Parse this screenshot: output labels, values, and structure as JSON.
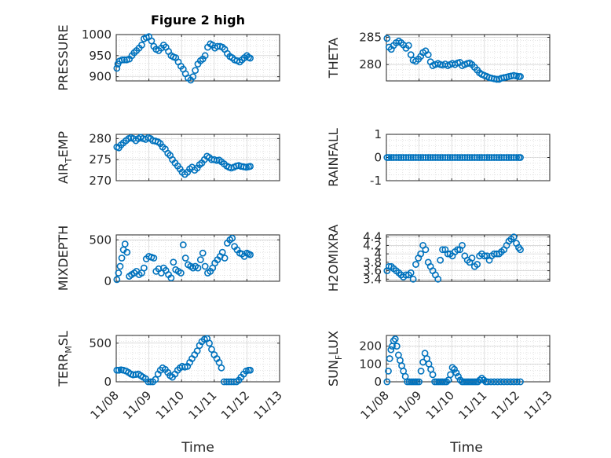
{
  "figure_title": "Figure 2 high",
  "chart_data": [
    {
      "type": "scatter",
      "ylabel": "PRESSURE",
      "ylim": [
        890,
        1000
      ],
      "yticks": [
        900,
        950,
        1000
      ],
      "xlim": [
        0,
        5
      ],
      "xticks": [
        0,
        1,
        2,
        3,
        4,
        5
      ],
      "x": [
        0.02,
        0.05,
        0.1,
        0.18,
        0.25,
        0.32,
        0.4,
        0.48,
        0.55,
        0.62,
        0.7,
        0.78,
        0.85,
        0.92,
        1.0,
        1.08,
        1.15,
        1.22,
        1.3,
        1.38,
        1.45,
        1.52,
        1.6,
        1.68,
        1.75,
        1.82,
        1.9,
        1.98,
        2.05,
        2.12,
        2.2,
        2.28,
        2.35,
        2.42,
        2.5,
        2.58,
        2.65,
        2.72,
        2.8,
        2.88,
        2.95,
        3.02,
        3.1,
        3.18,
        3.25,
        3.32,
        3.4,
        3.48,
        3.55,
        3.62,
        3.7,
        3.78,
        3.85,
        3.92,
        4.0,
        4.05,
        4.1
      ],
      "y": [
        920,
        930,
        937,
        940,
        940,
        940,
        942,
        950,
        957,
        962,
        968,
        975,
        990,
        993,
        995,
        985,
        972,
        965,
        962,
        968,
        975,
        970,
        960,
        950,
        947,
        945,
        935,
        925,
        918,
        907,
        897,
        892,
        900,
        915,
        930,
        938,
        942,
        950,
        970,
        978,
        975,
        968,
        972,
        972,
        970,
        965,
        955,
        948,
        945,
        940,
        938,
        935,
        940,
        945,
        950,
        946,
        944
      ]
    },
    {
      "type": "scatter",
      "ylabel": "THETA",
      "ylim": [
        277,
        285.5
      ],
      "yticks": [
        280,
        285
      ],
      "xlim": [
        0,
        5
      ],
      "xticks": [
        0,
        1,
        2,
        3,
        4,
        5
      ],
      "x": [
        0.02,
        0.08,
        0.15,
        0.22,
        0.3,
        0.38,
        0.45,
        0.52,
        0.6,
        0.68,
        0.75,
        0.82,
        0.9,
        0.98,
        1.05,
        1.12,
        1.2,
        1.28,
        1.35,
        1.42,
        1.5,
        1.58,
        1.65,
        1.72,
        1.8,
        1.88,
        1.95,
        2.02,
        2.1,
        2.18,
        2.25,
        2.32,
        2.4,
        2.48,
        2.55,
        2.62,
        2.7,
        2.78,
        2.85,
        2.92,
        3.0,
        3.08,
        3.15,
        3.22,
        3.3,
        3.38,
        3.45,
        3.52,
        3.6,
        3.68,
        3.75,
        3.82,
        3.9,
        3.98,
        4.05,
        4.1
      ],
      "y": [
        284.8,
        283.2,
        282.8,
        283.5,
        284.0,
        284.3,
        284.0,
        283.6,
        283.0,
        283.5,
        281.8,
        280.8,
        280.6,
        281.0,
        281.5,
        282.2,
        282.5,
        281.8,
        280.5,
        279.8,
        280.0,
        280.2,
        280.0,
        279.9,
        280.1,
        279.8,
        280.0,
        280.2,
        280.0,
        280.3,
        280.4,
        279.8,
        280.0,
        280.2,
        280.3,
        280.0,
        279.5,
        279.0,
        278.5,
        278.2,
        278.0,
        277.8,
        277.6,
        277.5,
        277.4,
        277.3,
        277.3,
        277.5,
        277.6,
        277.7,
        277.8,
        277.9,
        278.0,
        277.9,
        277.8,
        277.8
      ]
    },
    {
      "type": "scatter",
      "ylabel": "AIR_TEMP",
      "ylim": [
        270,
        281
      ],
      "yticks": [
        270,
        275,
        280
      ],
      "xlim": [
        0,
        5
      ],
      "xticks": [
        0,
        1,
        2,
        3,
        4,
        5
      ],
      "x": [
        0.02,
        0.08,
        0.15,
        0.22,
        0.3,
        0.38,
        0.45,
        0.52,
        0.6,
        0.68,
        0.75,
        0.82,
        0.9,
        0.98,
        1.05,
        1.12,
        1.2,
        1.28,
        1.35,
        1.42,
        1.5,
        1.58,
        1.65,
        1.72,
        1.8,
        1.88,
        1.95,
        2.02,
        2.1,
        2.18,
        2.25,
        2.32,
        2.4,
        2.48,
        2.55,
        2.62,
        2.7,
        2.78,
        2.85,
        2.92,
        3.0,
        3.08,
        3.15,
        3.22,
        3.3,
        3.38,
        3.45,
        3.52,
        3.6,
        3.68,
        3.75,
        3.82,
        3.9,
        3.98,
        4.05,
        4.1
      ],
      "y": [
        278.0,
        277.8,
        278.5,
        279.0,
        279.5,
        280.0,
        280.2,
        280.0,
        279.5,
        280.0,
        280.3,
        280.0,
        279.8,
        280.2,
        280.0,
        279.5,
        279.4,
        279.2,
        278.8,
        278.0,
        277.5,
        276.5,
        276.0,
        275.0,
        274.2,
        273.5,
        272.8,
        272.0,
        271.5,
        272.0,
        272.8,
        273.2,
        272.5,
        273.0,
        273.8,
        274.2,
        275.0,
        275.8,
        275.5,
        275.0,
        275.0,
        274.8,
        274.9,
        274.5,
        274.0,
        273.5,
        273.2,
        273.0,
        273.2,
        273.5,
        273.6,
        273.4,
        273.3,
        273.2,
        273.3,
        273.4
      ]
    },
    {
      "type": "scatter",
      "ylabel": "RAINFALL",
      "ylim": [
        -1,
        1
      ],
      "yticks": [
        -1,
        0,
        1
      ],
      "xlim": [
        0,
        5
      ],
      "xticks": [
        0,
        1,
        2,
        3,
        4,
        5
      ],
      "x": [
        0.02,
        0.08,
        0.15,
        0.22,
        0.3,
        0.38,
        0.45,
        0.52,
        0.6,
        0.68,
        0.75,
        0.82,
        0.9,
        0.98,
        1.05,
        1.12,
        1.2,
        1.28,
        1.35,
        1.42,
        1.5,
        1.58,
        1.65,
        1.72,
        1.8,
        1.88,
        1.95,
        2.02,
        2.1,
        2.18,
        2.25,
        2.32,
        2.4,
        2.48,
        2.55,
        2.62,
        2.7,
        2.78,
        2.85,
        2.92,
        3.0,
        3.08,
        3.15,
        3.22,
        3.3,
        3.38,
        3.45,
        3.52,
        3.6,
        3.68,
        3.75,
        3.82,
        3.9,
        3.98,
        4.05,
        4.1
      ],
      "y": [
        0,
        0,
        0,
        0,
        0,
        0,
        0,
        0,
        0,
        0,
        0,
        0,
        0,
        0,
        0,
        0,
        0,
        0,
        0,
        0,
        0,
        0,
        0,
        0,
        0,
        0,
        0,
        0,
        0,
        0,
        0,
        0,
        0,
        0,
        0,
        0,
        0,
        0,
        0,
        0,
        0,
        0,
        0,
        0,
        0,
        0,
        0,
        0,
        0,
        0,
        0,
        0,
        0,
        0,
        0,
        0
      ]
    },
    {
      "type": "scatter",
      "ylabel": "MIXDEPTH",
      "ylim": [
        0,
        560
      ],
      "yticks": [
        0,
        500
      ],
      "xlim": [
        0,
        5
      ],
      "xticks": [
        0,
        1,
        2,
        3,
        4,
        5
      ],
      "x": [
        0.02,
        0.07,
        0.12,
        0.17,
        0.22,
        0.27,
        0.33,
        0.4,
        0.47,
        0.55,
        0.62,
        0.7,
        0.78,
        0.85,
        0.92,
        1.0,
        1.08,
        1.15,
        1.22,
        1.3,
        1.38,
        1.45,
        1.52,
        1.6,
        1.68,
        1.75,
        1.82,
        1.9,
        1.98,
        2.05,
        2.12,
        2.2,
        2.28,
        2.35,
        2.42,
        2.5,
        2.58,
        2.65,
        2.72,
        2.8,
        2.88,
        2.95,
        3.02,
        3.1,
        3.18,
        3.25,
        3.32,
        3.4,
        3.48,
        3.55,
        3.62,
        3.7,
        3.78,
        3.85,
        3.92,
        4.0,
        4.05,
        4.1
      ],
      "y": [
        20,
        100,
        180,
        280,
        380,
        450,
        350,
        60,
        80,
        100,
        120,
        80,
        100,
        160,
        270,
        300,
        290,
        280,
        120,
        150,
        100,
        160,
        130,
        80,
        40,
        230,
        140,
        120,
        100,
        440,
        280,
        200,
        180,
        160,
        180,
        160,
        260,
        340,
        180,
        100,
        120,
        160,
        220,
        260,
        300,
        350,
        280,
        460,
        500,
        520,
        420,
        380,
        340,
        330,
        300,
        340,
        330,
        320
      ]
    },
    {
      "type": "scatter",
      "ylabel": "H2OMIXRA",
      "ylim": [
        3.35,
        4.45
      ],
      "yticks": [
        3.4,
        3.6,
        3.8,
        4,
        4.2,
        4.4
      ],
      "xlim": [
        0,
        5
      ],
      "xticks": [
        0,
        1,
        2,
        3,
        4,
        5
      ],
      "x": [
        0.02,
        0.08,
        0.15,
        0.22,
        0.3,
        0.38,
        0.45,
        0.52,
        0.6,
        0.68,
        0.75,
        0.82,
        0.9,
        0.98,
        1.05,
        1.12,
        1.2,
        1.28,
        1.35,
        1.42,
        1.5,
        1.58,
        1.65,
        1.72,
        1.8,
        1.88,
        1.95,
        2.02,
        2.1,
        2.18,
        2.25,
        2.32,
        2.4,
        2.48,
        2.55,
        2.62,
        2.7,
        2.78,
        2.85,
        2.92,
        3.0,
        3.08,
        3.15,
        3.22,
        3.3,
        3.38,
        3.45,
        3.52,
        3.6,
        3.68,
        3.75,
        3.82,
        3.9,
        3.98,
        4.05,
        4.1
      ],
      "y": [
        3.6,
        3.7,
        3.7,
        3.65,
        3.6,
        3.55,
        3.5,
        3.45,
        3.5,
        3.5,
        3.55,
        3.4,
        3.75,
        3.9,
        4.0,
        4.2,
        4.1,
        3.8,
        3.7,
        3.6,
        3.5,
        3.4,
        3.85,
        4.1,
        4.1,
        4.0,
        4.0,
        3.95,
        4.05,
        4.1,
        4.1,
        4.2,
        3.95,
        3.85,
        3.8,
        3.9,
        3.7,
        3.75,
        3.95,
        4.0,
        3.95,
        3.95,
        3.85,
        3.95,
        4.0,
        4.0,
        4.0,
        4.05,
        4.1,
        4.2,
        4.3,
        4.35,
        4.4,
        4.25,
        4.15,
        4.1
      ]
    },
    {
      "type": "scatter",
      "ylabel": "TERR_MSL",
      "ylim": [
        0,
        600
      ],
      "yticks": [
        0,
        500
      ],
      "xlim": [
        0,
        5
      ],
      "xticks": [
        0,
        1,
        2,
        3,
        4,
        5
      ],
      "x": [
        0.02,
        0.08,
        0.15,
        0.22,
        0.3,
        0.38,
        0.45,
        0.52,
        0.6,
        0.68,
        0.75,
        0.82,
        0.9,
        0.98,
        1.05,
        1.12,
        1.2,
        1.28,
        1.35,
        1.42,
        1.5,
        1.58,
        1.65,
        1.72,
        1.8,
        1.88,
        1.95,
        2.02,
        2.1,
        2.18,
        2.25,
        2.32,
        2.4,
        2.48,
        2.55,
        2.62,
        2.7,
        2.78,
        2.85,
        2.92,
        3.0,
        3.08,
        3.15,
        3.22,
        3.3,
        3.38,
        3.45,
        3.52,
        3.6,
        3.68,
        3.75,
        3.82,
        3.9,
        3.98,
        4.05,
        4.1
      ],
      "y": [
        150,
        150,
        155,
        150,
        140,
        120,
        100,
        90,
        95,
        100,
        80,
        60,
        40,
        0,
        0,
        0,
        30,
        100,
        150,
        180,
        160,
        120,
        80,
        60,
        100,
        150,
        180,
        200,
        190,
        200,
        250,
        300,
        350,
        400,
        470,
        520,
        550,
        560,
        500,
        420,
        350,
        300,
        250,
        180,
        0,
        0,
        0,
        0,
        0,
        0,
        20,
        60,
        100,
        140,
        150,
        150
      ]
    },
    {
      "type": "scatter",
      "ylabel": "SUN_FLUX",
      "ylim": [
        0,
        260
      ],
      "yticks": [
        0,
        100,
        200
      ],
      "xlim": [
        0,
        5
      ],
      "xticks": [
        0,
        1,
        2,
        3,
        4,
        5
      ],
      "x": [
        0.02,
        0.06,
        0.1,
        0.14,
        0.18,
        0.22,
        0.27,
        0.32,
        0.37,
        0.42,
        0.47,
        0.52,
        0.58,
        0.64,
        0.7,
        0.76,
        0.82,
        0.88,
        0.94,
        1.0,
        1.06,
        1.12,
        1.18,
        1.24,
        1.3,
        1.36,
        1.42,
        1.48,
        1.54,
        1.6,
        1.66,
        1.72,
        1.78,
        1.84,
        1.9,
        1.96,
        2.02,
        2.08,
        2.14,
        2.2,
        2.26,
        2.32,
        2.38,
        2.44,
        2.5,
        2.56,
        2.62,
        2.68,
        2.74,
        2.8,
        2.86,
        2.92,
        2.98,
        3.04,
        3.1,
        3.2,
        3.3,
        3.4,
        3.5,
        3.6,
        3.7,
        3.8,
        3.9,
        4.0,
        4.1
      ],
      "y": [
        0,
        60,
        130,
        180,
        200,
        230,
        240,
        200,
        150,
        120,
        90,
        60,
        30,
        0,
        0,
        0,
        0,
        0,
        0,
        0,
        60,
        110,
        160,
        130,
        100,
        70,
        40,
        0,
        0,
        0,
        0,
        0,
        0,
        0,
        10,
        40,
        80,
        70,
        50,
        30,
        10,
        0,
        0,
        0,
        0,
        0,
        0,
        0,
        0,
        0,
        10,
        20,
        10,
        0,
        0,
        0,
        0,
        0,
        0,
        0,
        0,
        0,
        0,
        0,
        0
      ]
    }
  ],
  "x_tick_labels": [
    "11/08",
    "11/09",
    "11/10",
    "11/11",
    "11/12",
    "11/13"
  ],
  "xlabel": "Time"
}
